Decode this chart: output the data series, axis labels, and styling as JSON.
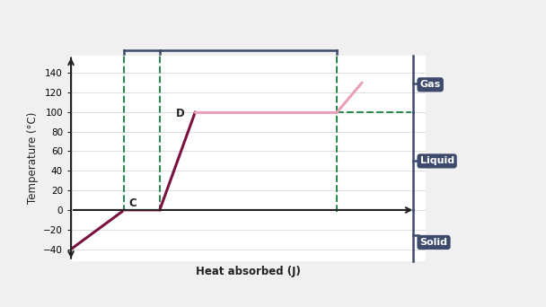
{
  "bg_color": "#f0f0f0",
  "plot_bg": "#ffffff",
  "line_color_dark": "#7a1040",
  "line_color_light": "#e8a0bc",
  "dashed_color": "#2d8a4e",
  "label_bg": "#3d4a6b",
  "label_text": "#ffffff",
  "axis_color": "#222222",
  "grid_color": "#cccccc",
  "brace_color": "#3d4a6b",
  "xlabel": "Heat absorbed (J)",
  "ylabel": "Temperature (°C)",
  "ylim": [
    -52,
    158
  ],
  "xlim": [
    0,
    10
  ],
  "yticks": [
    -40,
    -20,
    0,
    20,
    40,
    60,
    80,
    100,
    120,
    140
  ],
  "curve_x": [
    0.0,
    1.5,
    2.5,
    3.5,
    7.5,
    8.2,
    8.9
  ],
  "curve_y": [
    -40,
    0,
    0,
    100,
    100,
    130,
    145
  ],
  "point_C_x": 1.5,
  "point_C_y": 0,
  "point_D_x": 3.5,
  "point_D_y": 100,
  "melt_x1": 1.5,
  "melt_x2": 2.5,
  "boil_x2": 7.5,
  "gas_label": "Gas",
  "liquid_label": "Liquid",
  "solid_label": "Solid",
  "gas_y_center": 128,
  "liquid_y_center": 50,
  "solid_y_center": -33
}
